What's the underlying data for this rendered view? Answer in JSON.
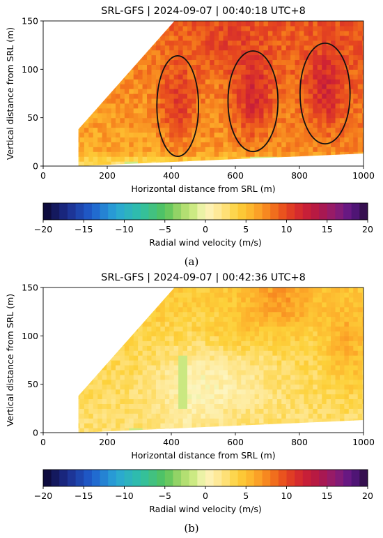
{
  "chart_data": [
    {
      "type": "heatmap",
      "panel_label": "(a)",
      "title": "SRL-GFS | 2024-09-07 | 00:40:18 UTC+8",
      "xlabel": "Horizontal distance from SRL (m)",
      "ylabel": "Vertical distance from SRL (m)",
      "xlim": [
        0,
        1000
      ],
      "ylim": [
        0,
        150
      ],
      "xticks": [
        "0",
        "200",
        "400",
        "600",
        "800",
        "1000"
      ],
      "yticks": [
        "0",
        "50",
        "100",
        "150"
      ],
      "colorbar": {
        "label": "Radial wind velocity (m/s)",
        "range": [
          -20,
          20
        ],
        "ticks": [
          "−20",
          "−15",
          "−10",
          "−5",
          "0",
          "5",
          "10",
          "15",
          "20"
        ]
      },
      "coverage_polygon": [
        [
          110,
          38
        ],
        [
          410,
          150
        ],
        [
          1000,
          150
        ],
        [
          1000,
          13
        ],
        [
          110,
          0
        ]
      ],
      "field_samples": [
        {
          "x": 150,
          "y": 25,
          "velocity": 5
        },
        {
          "x": 250,
          "y": 40,
          "velocity": 7
        },
        {
          "x": 420,
          "y": 60,
          "velocity": 10
        },
        {
          "x": 650,
          "y": 70,
          "velocity": 11
        },
        {
          "x": 880,
          "y": 75,
          "velocity": 11
        },
        {
          "x": 550,
          "y": 120,
          "velocity": 9
        },
        {
          "x": 800,
          "y": 30,
          "velocity": 6
        },
        {
          "x": 300,
          "y": 5,
          "velocity": 4
        }
      ],
      "annotations": [
        {
          "type": "ellipse",
          "cx": 420,
          "cy": 62,
          "rx": 65,
          "ry": 52
        },
        {
          "type": "ellipse",
          "cx": 655,
          "cy": 67,
          "rx": 78,
          "ry": 52
        },
        {
          "type": "ellipse",
          "cx": 880,
          "cy": 75,
          "rx": 78,
          "ry": 52
        }
      ]
    },
    {
      "type": "heatmap",
      "panel_label": "(b)",
      "title": "SRL-GFS | 2024-09-07 | 00:42:36 UTC+8",
      "xlabel": "Horizontal distance from SRL (m)",
      "ylabel": "Vertical distance from SRL (m)",
      "xlim": [
        0,
        1000
      ],
      "ylim": [
        0,
        150
      ],
      "xticks": [
        "0",
        "200",
        "400",
        "600",
        "800",
        "1000"
      ],
      "yticks": [
        "0",
        "50",
        "100",
        "150"
      ],
      "colorbar": {
        "label": "Radial wind velocity (m/s)",
        "range": [
          -20,
          20
        ],
        "ticks": [
          "−20",
          "−15",
          "−10",
          "−5",
          "0",
          "5",
          "10",
          "15",
          "20"
        ]
      },
      "coverage_polygon": [
        [
          110,
          38
        ],
        [
          410,
          150
        ],
        [
          1000,
          150
        ],
        [
          1000,
          13
        ],
        [
          110,
          0
        ]
      ],
      "field_samples": [
        {
          "x": 200,
          "y": 40,
          "velocity": 3
        },
        {
          "x": 400,
          "y": 60,
          "velocity": 1
        },
        {
          "x": 600,
          "y": 50,
          "velocity": 1
        },
        {
          "x": 750,
          "y": 130,
          "velocity": 5
        },
        {
          "x": 950,
          "y": 90,
          "velocity": 6
        }
      ]
    }
  ]
}
